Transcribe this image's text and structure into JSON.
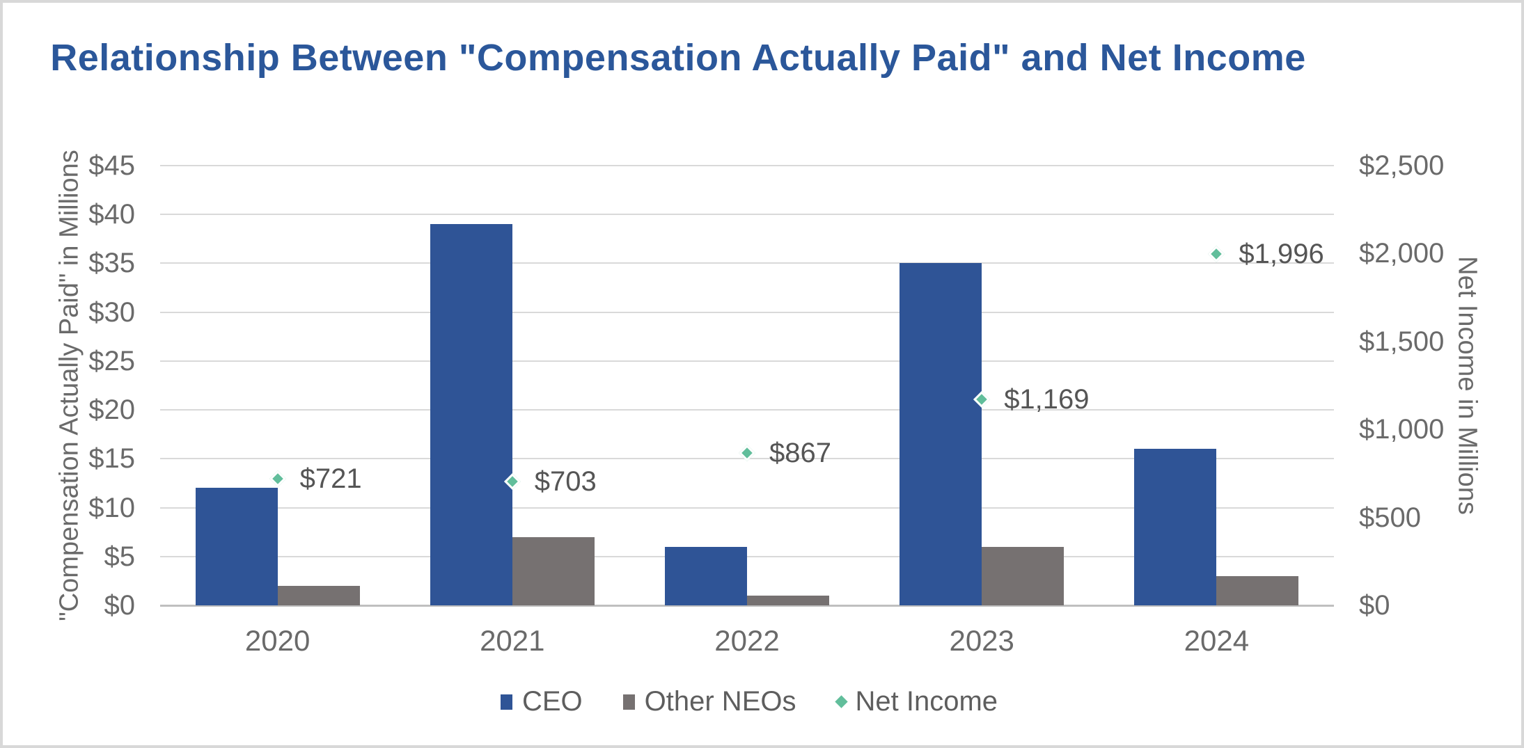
{
  "title": {
    "text": "Relationship Between \"Compensation Actually Paid\" and Net Income",
    "color": "#2B579A"
  },
  "chart_data": {
    "type": "bar",
    "subtype": "grouped bars with scatter overlay (combo chart, dual axis)",
    "categories": [
      "2020",
      "2021",
      "2022",
      "2023",
      "2024"
    ],
    "series": [
      {
        "name": "CEO",
        "type": "bar",
        "axis": "left",
        "color": "#2F5496",
        "values": [
          12,
          39,
          6,
          35,
          16
        ]
      },
      {
        "name": "Other NEOs",
        "type": "bar",
        "axis": "left",
        "color": "#767171",
        "values": [
          2,
          7,
          1,
          6,
          3
        ]
      },
      {
        "name": "Net Income",
        "type": "scatter",
        "marker": "diamond",
        "axis": "right",
        "color": "#61BE9B",
        "values": [
          721,
          703,
          867,
          1169,
          1996
        ],
        "labels": [
          "$721",
          "$703",
          "$867",
          "$1,169",
          "$1,996"
        ]
      }
    ],
    "left_axis": {
      "title": "\"Compensation Actually Paid\" in Millions",
      "min": 0,
      "max": 45,
      "major": 5,
      "ticks": [
        "$0",
        "$5",
        "$10",
        "$15",
        "$20",
        "$25",
        "$30",
        "$35",
        "$40",
        "$45"
      ]
    },
    "right_axis": {
      "title": "Net Income in Millions",
      "min": 0,
      "max": 2500,
      "major": 500,
      "ticks": [
        "$0",
        "$500",
        "$1,000",
        "$1,500",
        "$2,000",
        "$2,500"
      ]
    },
    "legend": {
      "position": "bottom",
      "items": [
        "CEO",
        "Other NEOs",
        "Net Income"
      ]
    },
    "grid": "horizontal gridlines on",
    "colors": {
      "gridline": "#D9D9D9",
      "axis_line": "#BFBFBF",
      "tick_text": "#6A6A6A",
      "axis_title_text": "#6A6A6A",
      "data_label_text": "#555555",
      "legend_text": "#5E5E5E"
    }
  }
}
